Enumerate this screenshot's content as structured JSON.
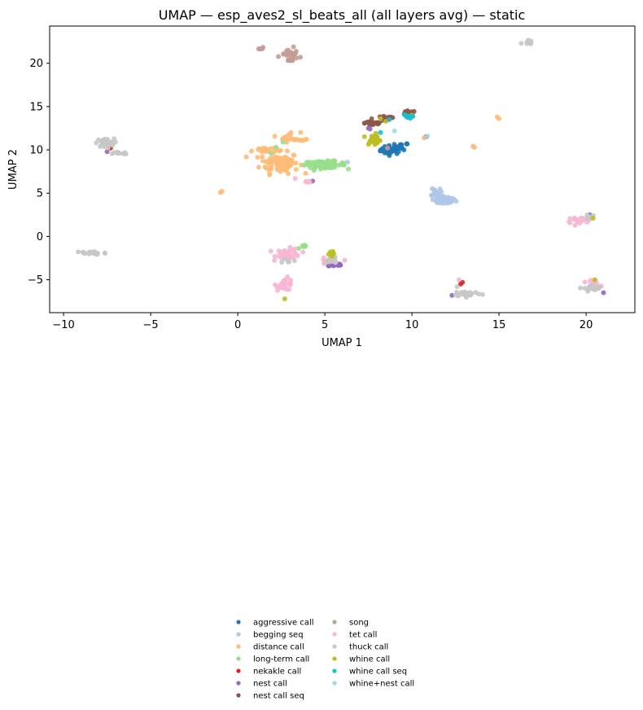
{
  "chart_data": {
    "type": "scatter",
    "title": "UMAP — esp_aves2_sl_beats_all (all layers avg) — static",
    "xlabel": "UMAP 1",
    "ylabel": "UMAP 2",
    "xlim": [
      -10.8,
      22.8
    ],
    "ylim": [
      -8.8,
      24.3
    ],
    "xticks": [
      -10,
      -5,
      0,
      5,
      10,
      15,
      20
    ],
    "yticks": [
      -5,
      0,
      5,
      10,
      15,
      20
    ],
    "grid": false,
    "legend_position": "bottom-center",
    "series": [
      {
        "name": "aggressive call",
        "color": "#1f77b4",
        "clusters": [
          {
            "cx": 8.8,
            "cy": 10.0,
            "rx": 0.6,
            "ry": 0.5,
            "n": 40
          },
          {
            "cx": 9.4,
            "cy": 10.4,
            "rx": 0.4,
            "ry": 0.4,
            "n": 16
          }
        ],
        "points": [
          [
            10.8,
            11.5
          ]
        ]
      },
      {
        "name": "begging seq",
        "color": "#aec7e8",
        "clusters": [
          {
            "cx": 11.8,
            "cy": 4.2,
            "rx": 0.7,
            "ry": 0.5,
            "n": 50
          },
          {
            "cx": 11.4,
            "cy": 5.2,
            "rx": 0.3,
            "ry": 0.6,
            "n": 12
          }
        ],
        "points": [
          [
            6.3,
            8.6
          ],
          [
            6.0,
            8.5
          ]
        ]
      },
      {
        "name": "distance call",
        "color": "#ffbb78",
        "clusters": [
          {
            "cx": 2.4,
            "cy": 8.5,
            "rx": 1.1,
            "ry": 1.2,
            "n": 90
          },
          {
            "cx": 1.5,
            "cy": 10.0,
            "rx": 0.7,
            "ry": 0.4,
            "n": 22
          },
          {
            "cx": 3.0,
            "cy": 11.5,
            "rx": 0.6,
            "ry": 0.6,
            "n": 16
          },
          {
            "cx": 3.7,
            "cy": 11.2,
            "rx": 0.3,
            "ry": 0.2,
            "n": 6
          }
        ],
        "points": [
          [
            -0.9,
            5.2
          ],
          [
            -1.0,
            5.1
          ],
          [
            14.9,
            13.8
          ],
          [
            15.0,
            13.6
          ],
          [
            13.5,
            10.4
          ],
          [
            13.6,
            10.3
          ],
          [
            10.7,
            11.4
          ]
        ]
      },
      {
        "name": "long-term call",
        "color": "#98df8a",
        "clusters": [
          {
            "cx": 5.0,
            "cy": 8.3,
            "rx": 1.2,
            "ry": 0.4,
            "n": 70
          },
          {
            "cx": 3.8,
            "cy": -1.2,
            "rx": 0.3,
            "ry": 0.2,
            "n": 8
          }
        ],
        "points": [
          [
            2.2,
            10.3
          ],
          [
            2.6,
            10.9
          ],
          [
            1.9,
            9.6
          ]
        ]
      },
      {
        "name": "nekakle call",
        "color": "#d62728",
        "clusters": [],
        "points": [
          [
            -7.3,
            10.2
          ],
          [
            12.8,
            -5.5
          ],
          [
            12.9,
            -5.3
          ]
        ]
      },
      {
        "name": "nest call",
        "color": "#9467bd",
        "clusters": [
          {
            "cx": 5.6,
            "cy": -3.3,
            "rx": 0.5,
            "ry": 0.2,
            "n": 14
          }
        ],
        "points": [
          [
            4.3,
            6.4
          ],
          [
            7.5,
            12.5
          ],
          [
            7.6,
            12.4
          ],
          [
            12.3,
            -6.8
          ],
          [
            21.0,
            -6.5
          ],
          [
            20.2,
            2.5
          ],
          [
            -7.5,
            9.8
          ]
        ]
      },
      {
        "name": "nest call seq",
        "color": "#8c564b",
        "clusters": [
          {
            "cx": 7.8,
            "cy": 13.1,
            "rx": 0.5,
            "ry": 0.3,
            "n": 26
          },
          {
            "cx": 9.8,
            "cy": 14.2,
            "rx": 0.4,
            "ry": 0.3,
            "n": 20
          },
          {
            "cx": 8.5,
            "cy": 13.6,
            "rx": 0.5,
            "ry": 0.3,
            "n": 16
          }
        ],
        "points": []
      },
      {
        "name": "song",
        "color": "#c49c94",
        "clusters": [
          {
            "cx": 3.0,
            "cy": 21.0,
            "rx": 0.5,
            "ry": 0.5,
            "n": 18
          },
          {
            "cx": 1.3,
            "cy": 21.7,
            "rx": 0.2,
            "ry": 0.2,
            "n": 5
          },
          {
            "cx": 3.0,
            "cy": 20.2,
            "rx": 0.3,
            "ry": 0.3,
            "n": 6
          }
        ],
        "points": [
          [
            3.6,
            20.7
          ],
          [
            3.2,
            21.9
          ],
          [
            8.6,
            10.2
          ]
        ]
      },
      {
        "name": "tet call",
        "color": "#f7b6d2",
        "clusters": [
          {
            "cx": 2.9,
            "cy": -2.0,
            "rx": 0.7,
            "ry": 0.6,
            "n": 40
          },
          {
            "cx": 2.7,
            "cy": -5.5,
            "rx": 0.5,
            "ry": 0.7,
            "n": 26
          },
          {
            "cx": 19.6,
            "cy": 1.9,
            "rx": 0.8,
            "ry": 0.3,
            "n": 22
          },
          {
            "cx": 20.4,
            "cy": -5.3,
            "rx": 0.4,
            "ry": 0.5,
            "n": 12
          },
          {
            "cx": 5.2,
            "cy": -2.9,
            "rx": 0.6,
            "ry": 0.4,
            "n": 12
          },
          {
            "cx": 4.0,
            "cy": 6.3,
            "rx": 0.3,
            "ry": 0.1,
            "n": 5
          }
        ],
        "points": [
          [
            12.7,
            -5.0
          ],
          [
            3.3,
            6.7
          ]
        ]
      },
      {
        "name": "thuck call",
        "color": "#c7c7c7",
        "clusters": [
          {
            "cx": -7.6,
            "cy": 10.8,
            "rx": 0.5,
            "ry": 0.5,
            "n": 40
          },
          {
            "cx": -6.8,
            "cy": 9.6,
            "rx": 0.4,
            "ry": 0.2,
            "n": 10
          },
          {
            "cx": -8.4,
            "cy": -1.9,
            "rx": 0.9,
            "ry": 0.2,
            "n": 30
          },
          {
            "cx": 13.2,
            "cy": -6.6,
            "rx": 0.8,
            "ry": 0.3,
            "n": 32
          },
          {
            "cx": 20.4,
            "cy": -6.0,
            "rx": 0.5,
            "ry": 0.4,
            "n": 20
          },
          {
            "cx": 16.6,
            "cy": 22.4,
            "rx": 0.3,
            "ry": 0.3,
            "n": 10
          },
          {
            "cx": 5.4,
            "cy": -2.6,
            "rx": 0.4,
            "ry": 0.5,
            "n": 12
          },
          {
            "cx": 2.9,
            "cy": -2.8,
            "rx": 0.3,
            "ry": 0.3,
            "n": 6
          },
          {
            "cx": 20.2,
            "cy": 2.3,
            "rx": 0.2,
            "ry": 0.3,
            "n": 6
          }
        ],
        "points": [
          [
            12.6,
            -5.8
          ]
        ]
      },
      {
        "name": "whine call",
        "color": "#bcbd22",
        "clusters": [
          {
            "cx": 7.8,
            "cy": 11.2,
            "rx": 0.4,
            "ry": 0.6,
            "n": 40
          },
          {
            "cx": 5.3,
            "cy": -2.0,
            "rx": 0.2,
            "ry": 0.3,
            "n": 6
          }
        ],
        "points": [
          [
            2.7,
            -7.2
          ],
          [
            20.4,
            2.1
          ],
          [
            20.5,
            -5.0
          ],
          [
            8.2,
            13.6
          ],
          [
            10.0,
            14.0
          ],
          [
            8.5,
            13.3
          ]
        ]
      },
      {
        "name": "whine call seq",
        "color": "#17becf",
        "clusters": [
          {
            "cx": 9.7,
            "cy": 13.8,
            "rx": 0.3,
            "ry": 0.3,
            "n": 8
          }
        ],
        "points": [
          [
            8.7,
            13.5
          ],
          [
            8.2,
            12.0
          ]
        ]
      },
      {
        "name": "whine+nest call",
        "color": "#9edae5",
        "clusters": [],
        "points": [
          [
            10.9,
            11.6
          ],
          [
            9.0,
            12.2
          ]
        ]
      }
    ]
  }
}
